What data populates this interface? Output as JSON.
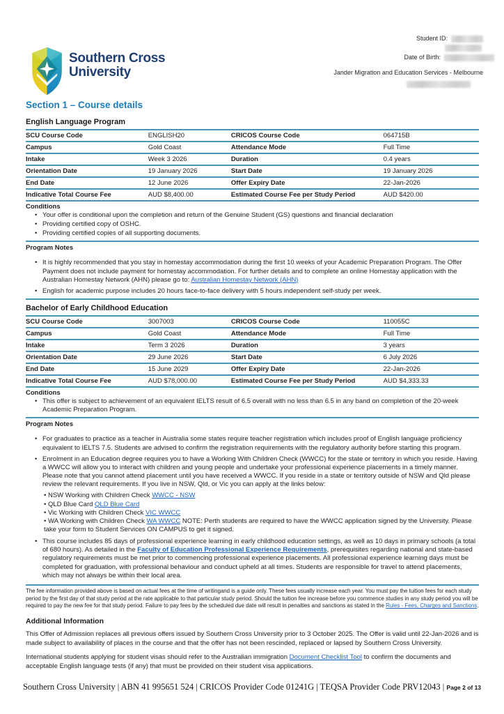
{
  "colors": {
    "heading_blue": "#1c7cbd",
    "rule_teal": "#4a96b7",
    "link_blue": "#2268c2",
    "logo_navy": "#1e3f70"
  },
  "header": {
    "logo": {
      "line1": "Southern Cross",
      "line2": "University"
    },
    "meta": {
      "student_id_label": "Student ID:",
      "dob_label": "Date of Birth:",
      "agency": "Jander Migration and Education Services - Melbourne"
    }
  },
  "section_title": "Section 1 – Course details",
  "labels": {
    "conditions": "Conditions",
    "program_notes": "Program Notes"
  },
  "course1": {
    "title": "English Language Program",
    "table": {
      "rows": [
        {
          "l1": "SCU Course Code",
          "v1": "ENGLISH20",
          "l2": "CRICOS Course Code",
          "v2": "064715B"
        },
        {
          "l1": "Campus",
          "v1": "Gold Coast",
          "l2": "Attendance Mode",
          "v2": "Full Time"
        },
        {
          "l1": "Intake",
          "v1": "Week 3 2026",
          "l2": "Duration",
          "v2": "0.4 years"
        },
        {
          "l1": "Orientation Date",
          "v1": "19 January 2026",
          "l2": "Start Date",
          "v2": "19 January 2026"
        },
        {
          "l1": "End Date",
          "v1": "12 June 2026",
          "l2": "Offer Expiry Date",
          "v2": "22-Jan-2026"
        },
        {
          "l1": "Indicative Total Course Fee",
          "v1": "AUD $8,400.00",
          "l2": "Estimated Course Fee per Study Period",
          "v2": "AUD $420.00"
        }
      ]
    },
    "conditions": [
      [
        {
          "t": "Your offer is conditional upon the completion and return of the Genuine Student (GS) questions and financial declaration"
        }
      ],
      [
        {
          "t": "Providing certified copy of OSHC."
        }
      ],
      [
        {
          "t": "Providing certified copies of all supporting documents."
        }
      ]
    ],
    "program_notes": [
      [
        {
          "t": "It is highly recommended that you stay in homestay accommodation during the first 10 weeks of your Academic Preparation Program. The Offer Payment does not include payment for homestay accommodation. For further details and to complete an online Homestay application with the Australian Homestay Network (AHN) please go to: "
        },
        {
          "t": "Australian Homestay Network (AHN)",
          "link": true,
          "name": "australian-homestay-network-link"
        }
      ],
      [
        {
          "t": "English for academic purpose includes 20 hours face-to-face delivery with 5 hours independent self-study per week."
        }
      ]
    ]
  },
  "course2": {
    "title": "Bachelor of Early Childhood Education",
    "table": {
      "rows": [
        {
          "l1": "SCU Course Code",
          "v1": "3007003",
          "l2": "CRICOS Course Code",
          "v2": "110055C"
        },
        {
          "l1": "Campus",
          "v1": "Gold Coast",
          "l2": "Attendance Mode",
          "v2": "Full Time"
        },
        {
          "l1": "Intake",
          "v1": "Term 3 2026",
          "l2": "Duration",
          "v2": "3 years"
        },
        {
          "l1": "Orientation Date",
          "v1": "29 June 2026",
          "l2": "Start Date",
          "v2": "6 July 2026"
        },
        {
          "l1": "End Date",
          "v1": "15 June 2029",
          "l2": "Offer Expiry Date",
          "v2": "22-Jan-2026"
        },
        {
          "l1": "Indicative Total Course Fee",
          "v1": "AUD $78,000.00",
          "l2": "Estimated Course Fee per Study Period",
          "v2": "AUD $4,333.33"
        }
      ]
    },
    "conditions": [
      [
        {
          "t": "This offer is subject to achievement of an equivalent IELTS result of 6.5 overall with no less than 6.5 in any band on completion of the 20-week Academic Preparation Program."
        }
      ]
    ],
    "program_notes_a": [
      [
        {
          "t": "For graduates to practice as a teacher in Australia some states require teacher registration which includes proof of English language proficiency equivalent to IELTS 7.5. Students are advised to confirm the registration requirements with the regulatory authority before starting this program."
        }
      ],
      [
        {
          "t": "Enrolment in an Education degree requires you to have a Working With Children Check (WWCC) for the state or territory in which you reside. Having a WWCC will allow you to interact with children and young people and undertake your professional experience placements in a timely manner. Please note that you cannot attend placement until you have received a WWCC. If you reside in a state or territory outside of NSW and Qld please review the relevant requirements. If you live in NSW, Qld, or Vic you can apply at the links below:"
        }
      ]
    ],
    "sub_bullets": [
      [
        {
          "t": "NSW Working with Children Check "
        },
        {
          "t": "WWCC - NSW",
          "link": true,
          "name": "wwcc-nsw-link"
        }
      ],
      [
        {
          "t": "QLD Blue Card "
        },
        {
          "t": "QLD Blue Card",
          "link": true,
          "name": "qld-blue-card-link"
        }
      ],
      [
        {
          "t": "Vic Working with Children Check "
        },
        {
          "t": "VIC WWCC",
          "link": true,
          "name": "vic-wwcc-link"
        }
      ],
      [
        {
          "t": "WA Working with Children Check "
        },
        {
          "t": "WA WWCC",
          "link": true,
          "name": "wa-wwcc-link"
        },
        {
          "t": " NOTE: Perth students are required to have the WWCC application signed by the University. Please take your form to Student Services ON CAMPUS to get it signed."
        }
      ]
    ],
    "program_notes_b": [
      [
        {
          "t": "This course includes 85 days of professional experience learning in early childhood education settings, as well as 10 days in primary schools (a total of 680 hours). As detailed in the "
        },
        {
          "t": "Faculty of Education Professional Experience Requirements",
          "link": true,
          "bold": true,
          "name": "faculty-education-experience-requirements-link"
        },
        {
          "t": ", prerequisites regarding national and state-based regulatory requirements must be met prior to commencing professional experience placements. All professional experience learning days must be completed for graduation, with professional behaviour and conduct upheld at all times. Students are responsible for travel to attend placements, which may not always be within their local area."
        }
      ]
    ]
  },
  "fee_note": [
    {
      "t": "The fee information provided above is based on actual fees at the time of writingand is a guide only. These fees usually increase each year. You must pay the tuition fees for each study period by the first day of that study period at the rate applicable to that particular study period. Should the tuition fee increase before you commence studies in any study period you will be required to pay the new fee for that study period. Failure to pay fees by the scheduled due date will result in penalties and sanctions as stated in the "
    },
    {
      "t": "Rules - Fees, Charges and Sanctions",
      "link": true,
      "name": "rules-fees-charges-sanctions-link"
    },
    {
      "t": "."
    }
  ],
  "additional": {
    "heading": "Additional Information",
    "para1": [
      {
        "t": "This Offer of Admission replaces all previous offers issued by Southern Cross University prior to 3 October 2025. The Offer is valid until 22-Jan-2026 and is made subject to availability of places in the course and that the offer has not been rescinded, replaced or lapsed by Southern Cross University."
      }
    ],
    "para2": [
      {
        "t": "International students applying for student visas should refer to the Australian immigration "
      },
      {
        "t": "Document Checklist Tool",
        "link": true,
        "name": "document-checklist-tool-link"
      },
      {
        "t": " to confirm the documents and acceptable English language tests (if any) that must be provided on their student visa applications."
      }
    ]
  },
  "footer": {
    "main": "Southern Cross University | ABN 41 995651 524 | CRICOS Provider Code 01241G | TEQSA Provider Code PRV12043",
    "separator": " | ",
    "page": "Page 2 of 13"
  }
}
